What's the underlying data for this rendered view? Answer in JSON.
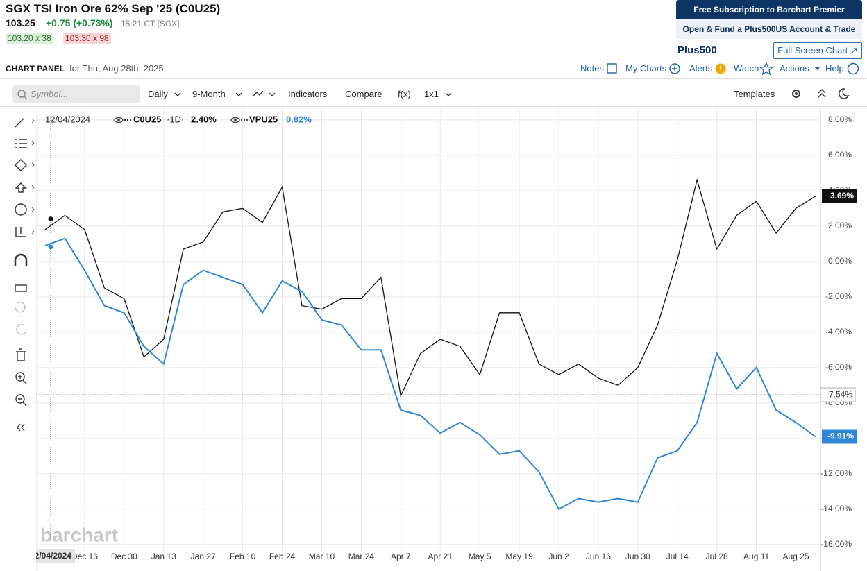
{
  "header": {
    "title": "SGX TSI Iron Ore 62% Sep '25 (C0U25)",
    "last_price": "103.25",
    "change": "+0.75 (+0.73%)",
    "time": "15:21 CT [SGX]",
    "bid": "103.20 x 38",
    "ask": "103.30 x 98"
  },
  "promo": {
    "premier": "Free Subscription to Barchart Premier",
    "plus500": "Open & Fund a Plus500US Account & Trade",
    "logo": "Plus500",
    "fullscreen": "Full Screen Chart"
  },
  "panel": {
    "label": "CHART PANEL",
    "date": "for Thu, Aug 28th, 2025",
    "links": [
      "Notes",
      "My Charts",
      "Alerts",
      "Watch",
      "Actions",
      "Help"
    ]
  },
  "toolbar": {
    "search": "Symbol...",
    "interval": "Daily",
    "range": "9-Month",
    "buttons": [
      "Indicators",
      "Compare",
      "f(x)",
      "1x1"
    ],
    "templates": "Templates"
  },
  "chart_data": {
    "type": "line",
    "watermark": "barchart",
    "categories": [
      null,
      null,
      "Dec 16",
      null,
      "Dec 30",
      null,
      "Jan 13",
      null,
      "Jan 27",
      null,
      "Feb 10",
      null,
      "Feb 24",
      null,
      "Mar 10",
      null,
      "Mar 24",
      null,
      "Apr 7",
      null,
      "Apr 21",
      null,
      "May 5",
      null,
      "May 19",
      null,
      "Jun 2",
      null,
      "Jun 16",
      null,
      "Jun 30",
      null,
      "Jul 14",
      null,
      "Jul 28",
      null,
      "Aug 11",
      null,
      "Aug 25",
      null
    ],
    "series": [
      {
        "name": "C0U25",
        "interval": "·1D·",
        "color": "#111111",
        "last_label": "3.69%",
        "values": [
          1.8,
          2.6,
          1.8,
          -1.5,
          -2.1,
          -5.4,
          -4.4,
          0.7,
          1.1,
          2.8,
          3.0,
          2.2,
          4.2,
          -2.5,
          -2.7,
          -2.1,
          -2.1,
          -0.9,
          -7.6,
          -5.2,
          -4.4,
          -4.8,
          -6.4,
          -2.9,
          -2.9,
          -5.8,
          -6.4,
          -5.8,
          -6.6,
          -7.0,
          -6.0,
          -3.6,
          0.1,
          4.6,
          0.7,
          2.6,
          3.4,
          1.6,
          3.0,
          3.69
        ]
      },
      {
        "name": "VPU25",
        "color": "#2e86d8",
        "last_label": "-9.91%",
        "values": [
          0.9,
          1.3,
          -0.5,
          -2.5,
          -2.9,
          -4.8,
          -5.8,
          -1.3,
          -0.5,
          -0.9,
          -1.3,
          -2.9,
          -1.1,
          -1.7,
          -3.3,
          -3.6,
          -5.0,
          -5.0,
          -8.4,
          -8.7,
          -9.7,
          -9.1,
          -9.8,
          -10.9,
          -10.7,
          -11.9,
          -14.0,
          -13.4,
          -13.6,
          -13.4,
          -13.6,
          -11.1,
          -10.7,
          -9.1,
          -5.2,
          -7.2,
          -6.0,
          -8.4,
          -9.1,
          -9.91
        ]
      }
    ],
    "crosshair": {
      "date": "12/04/2024",
      "values": [
        {
          "value": 2.4,
          "label": "2.40%"
        },
        {
          "value": 0.82,
          "label": "0.82%"
        }
      ]
    },
    "reference_line": {
      "value": -7.54,
      "label": "-7.54%"
    },
    "ylim": [
      -16.4,
      8.7
    ],
    "yticks": [
      {
        "value": 8,
        "label": "8.00%"
      },
      {
        "value": 6,
        "label": "6.00%"
      },
      {
        "value": 4,
        "label": "4.00%"
      },
      {
        "value": 2,
        "label": "2.00%"
      },
      {
        "value": 0,
        "label": "0.00%"
      },
      {
        "value": -2,
        "label": "-2.00%"
      },
      {
        "value": -4,
        "label": "-4.00%"
      },
      {
        "value": -6,
        "label": "-6.00%"
      },
      {
        "value": -8,
        "label": "-8.00%"
      },
      {
        "value": -10,
        "label": "-10.00%"
      },
      {
        "value": -12,
        "label": "-12.00%"
      },
      {
        "value": -14,
        "label": "-14.00%"
      },
      {
        "value": -16,
        "label": "-16.00%"
      }
    ],
    "grid": true
  }
}
